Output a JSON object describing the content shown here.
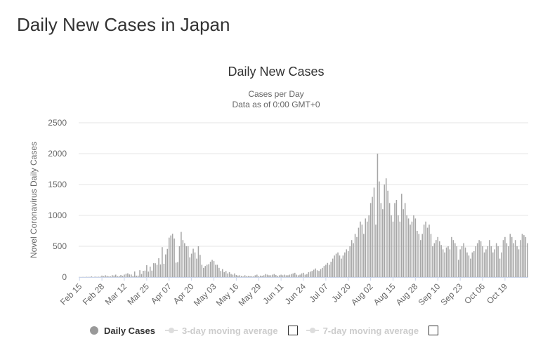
{
  "page": {
    "title": "Daily New Cases in Japan"
  },
  "legend": {
    "daily_cases": "Daily Cases",
    "ma3": "3-day moving average",
    "ma7": "7-day moving average"
  },
  "colors": {
    "bar": "#a6a6a6",
    "grid": "#e6e6e6",
    "legend_dot": "#999999",
    "legend_hidden": "#cccccc"
  },
  "chart_data": {
    "type": "bar",
    "title": "Daily New Cases",
    "subtitle": [
      "Cases per Day",
      "Data as of 0:00 GMT+0"
    ],
    "ylabel": "Novel Coronavirus Daily Cases",
    "xlabel": "",
    "ylim": [
      0,
      2500
    ],
    "yticks": [
      0,
      500,
      1000,
      1500,
      2000,
      2500
    ],
    "xticks": [
      "Feb 15",
      "Feb 28",
      "Mar 12",
      "Mar 25",
      "Apr 07",
      "Apr 20",
      "May 03",
      "May 16",
      "May 29",
      "Jun 11",
      "Jun 24",
      "Jul 07",
      "Jul 20",
      "Aug 02",
      "Aug 15",
      "Aug 28",
      "Sep 10",
      "Sep 23",
      "Oct 06",
      "Oct 19"
    ],
    "tick_interval_days": 13,
    "grid": true,
    "legend_position": "bottom",
    "series": [
      {
        "name": "Daily Cases",
        "values": [
          1,
          0,
          2,
          0,
          5,
          3,
          2,
          12,
          0,
          8,
          3,
          6,
          7,
          25,
          15,
          30,
          23,
          10,
          12,
          31,
          26,
          40,
          15,
          20,
          35,
          20,
          41,
          55,
          62,
          44,
          42,
          20,
          92,
          24,
          25,
          112,
          50,
          102,
          106,
          193,
          90,
          170,
          105,
          226,
          225,
          200,
          306,
          205,
          486,
          217,
          368,
          457,
          640,
          675,
          703,
          625,
          235,
          243,
          500,
          732,
          600,
          550,
          500,
          500,
          320,
          380,
          460,
          400,
          300,
          500,
          360,
          200,
          150,
          180,
          200,
          210,
          250,
          280,
          260,
          200,
          200,
          150,
          100,
          130,
          80,
          100,
          60,
          80,
          50,
          40,
          60,
          35,
          25,
          30,
          20,
          10,
          30,
          16,
          20,
          15,
          15,
          12,
          30,
          40,
          15,
          25,
          20,
          30,
          50,
          40,
          30,
          30,
          40,
          50,
          35,
          20,
          30,
          40,
          30,
          40,
          30,
          30,
          40,
          50,
          60,
          70,
          40,
          30,
          40,
          60,
          70,
          40,
          50,
          80,
          90,
          100,
          120,
          140,
          110,
          100,
          130,
          150,
          180,
          200,
          230,
          200,
          250,
          300,
          350,
          380,
          400,
          350,
          300,
          350,
          400,
          450,
          420,
          500,
          600,
          550,
          700,
          650,
          800,
          900,
          850,
          700,
          950,
          900,
          1000,
          1200,
          1300,
          1450,
          850,
          2000,
          1550,
          1200,
          1100,
          1500,
          1600,
          1400,
          1200,
          1000,
          900,
          1200,
          1250,
          1000,
          900,
          1350,
          1100,
          1200,
          1000,
          950,
          850,
          900,
          1000,
          950,
          750,
          700,
          600,
          700,
          850,
          900,
          800,
          850,
          700,
          500,
          550,
          600,
          650,
          580,
          520,
          450,
          400,
          480,
          500,
          450,
          650,
          600,
          550,
          500,
          280,
          450,
          500,
          550,
          480,
          400,
          350,
          300,
          400,
          420,
          500,
          550,
          600,
          580,
          500,
          400,
          450,
          500,
          600,
          500,
          400,
          450,
          550,
          500,
          300,
          400,
          600,
          650,
          550,
          500,
          700,
          650,
          550,
          600,
          500,
          450,
          600,
          700,
          680,
          650,
          550
        ]
      }
    ]
  }
}
